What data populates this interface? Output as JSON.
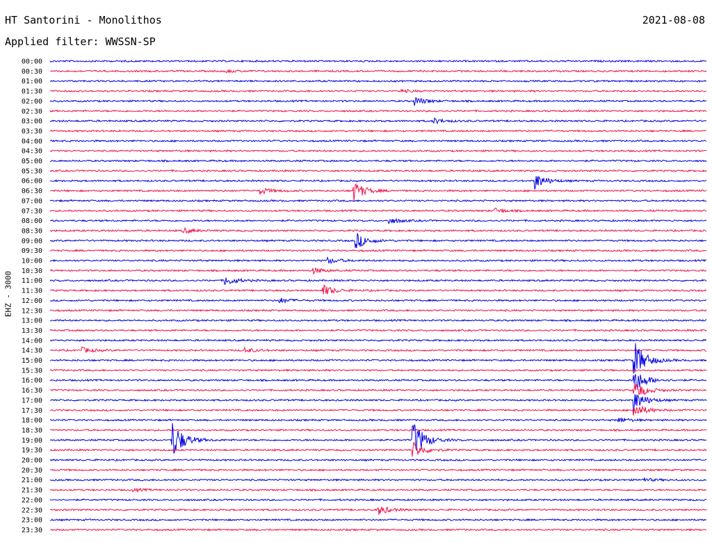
{
  "header": {
    "station": "HT Santorini - Monolithos",
    "date": "2021-08-08",
    "filter": "Applied filter: WWSSN-SP",
    "channel": "EHZ - 3000"
  },
  "colors": {
    "blue": "#0000e0",
    "red": "#f0104a"
  },
  "chart_data": {
    "type": "line",
    "title": "HT Santorini - Monolithos",
    "subtitle": "Applied filter: WWSSN-SP",
    "ylabel": "EHZ - 3000",
    "y_categories": [
      "00:00",
      "00:30",
      "01:00",
      "01:30",
      "02:00",
      "02:30",
      "03:00",
      "03:30",
      "04:00",
      "04:30",
      "05:00",
      "05:30",
      "06:00",
      "06:30",
      "07:00",
      "07:30",
      "08:00",
      "08:30",
      "09:00",
      "09:30",
      "10:00",
      "10:30",
      "11:00",
      "11:30",
      "12:00",
      "12:30",
      "13:00",
      "13:30",
      "14:00",
      "14:30",
      "15:00",
      "15:30",
      "16:00",
      "16:30",
      "17:00",
      "17:30",
      "18:00",
      "18:30",
      "19:00",
      "19:30",
      "20:00",
      "20:30",
      "21:00",
      "21:30",
      "22:00",
      "22:30",
      "23:00",
      "23:30"
    ],
    "trace_window_minutes": 30,
    "events": [
      {
        "trace": "00:30",
        "minute": 8.0,
        "amp": 0.3
      },
      {
        "trace": "01:30",
        "minute": 16.0,
        "amp": 0.3
      },
      {
        "trace": "02:00",
        "minute": 16.7,
        "amp": 0.8
      },
      {
        "trace": "03:00",
        "minute": 17.5,
        "amp": 0.6
      },
      {
        "trace": "06:00",
        "minute": 22.2,
        "amp": 1.5
      },
      {
        "trace": "06:30",
        "minute": 9.6,
        "amp": 0.7
      },
      {
        "trace": "06:30",
        "minute": 13.9,
        "amp": 1.9
      },
      {
        "trace": "07:30",
        "minute": 20.3,
        "amp": 0.5
      },
      {
        "trace": "08:00",
        "minute": 15.5,
        "amp": 0.6
      },
      {
        "trace": "08:30",
        "minute": 6.1,
        "amp": 0.5
      },
      {
        "trace": "09:00",
        "minute": 14.0,
        "amp": 1.6
      },
      {
        "trace": "10:00",
        "minute": 12.7,
        "amp": 0.6
      },
      {
        "trace": "10:30",
        "minute": 12.0,
        "amp": 0.6
      },
      {
        "trace": "11:00",
        "minute": 8.0,
        "amp": 1.0
      },
      {
        "trace": "11:30",
        "minute": 12.5,
        "amp": 1.1
      },
      {
        "trace": "12:00",
        "minute": 10.5,
        "amp": 0.5
      },
      {
        "trace": "14:30",
        "minute": 1.5,
        "amp": 0.5
      },
      {
        "trace": "14:30",
        "minute": 8.9,
        "amp": 0.5
      },
      {
        "trace": "15:00",
        "minute": 26.7,
        "amp": 3.9
      },
      {
        "trace": "16:00",
        "minute": 26.7,
        "amp": 2.5
      },
      {
        "trace": "16:30",
        "minute": 26.7,
        "amp": 2.0
      },
      {
        "trace": "17:00",
        "minute": 26.7,
        "amp": 2.0
      },
      {
        "trace": "17:30",
        "minute": 26.7,
        "amp": 1.5
      },
      {
        "trace": "18:00",
        "minute": 26.0,
        "amp": 0.5
      },
      {
        "trace": "19:00",
        "minute": 5.6,
        "amp": 3.9
      },
      {
        "trace": "19:00",
        "minute": 16.6,
        "amp": 4.0
      },
      {
        "trace": "19:30",
        "minute": 16.6,
        "amp": 1.6
      },
      {
        "trace": "21:00",
        "minute": 27.0,
        "amp": 0.4
      },
      {
        "trace": "21:30",
        "minute": 3.8,
        "amp": 0.3
      },
      {
        "trace": "22:30",
        "minute": 15.0,
        "amp": 1.0
      }
    ]
  }
}
